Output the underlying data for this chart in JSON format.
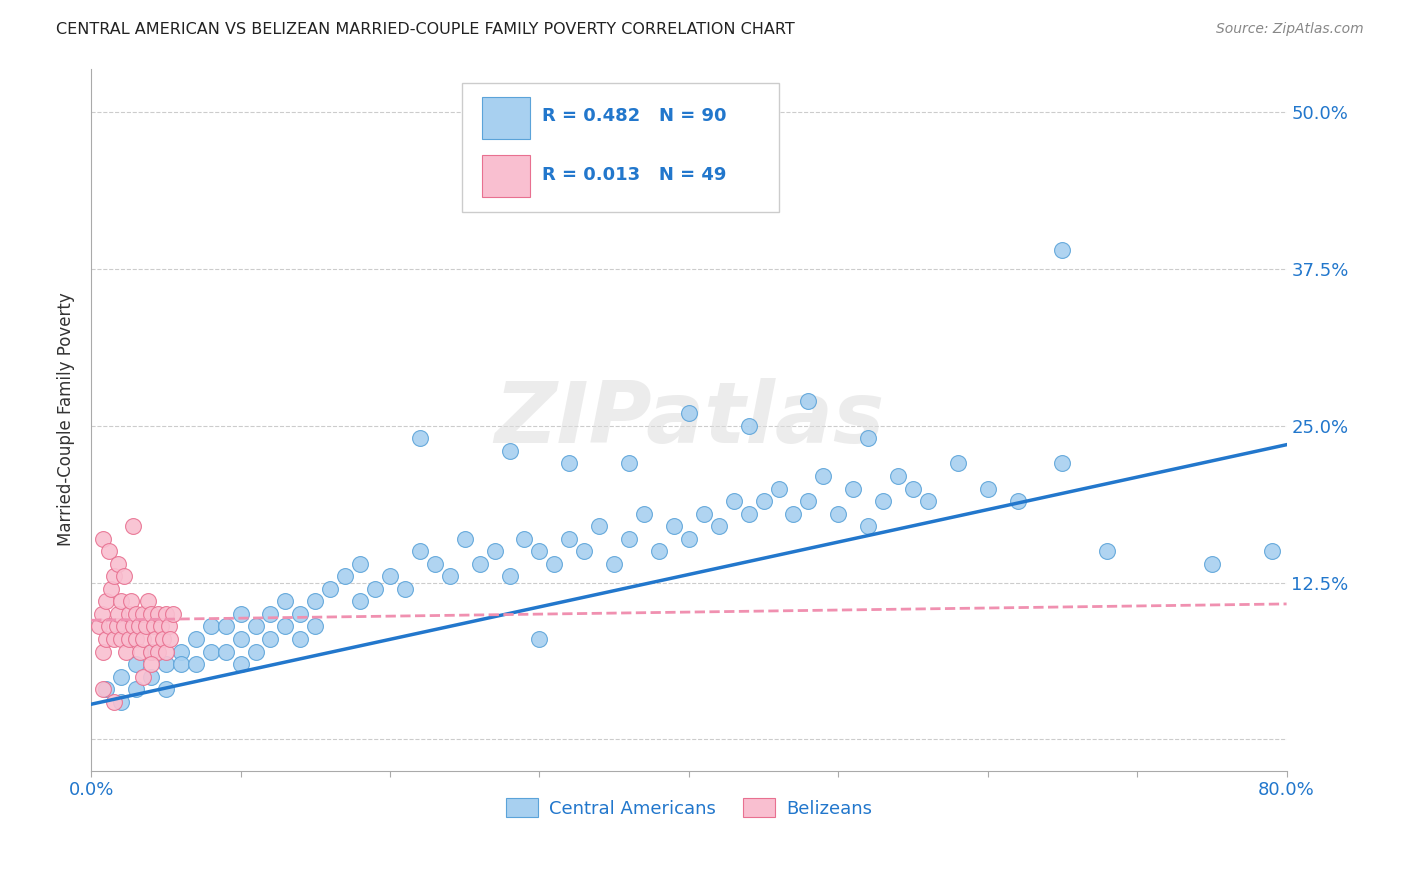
{
  "title": "CENTRAL AMERICAN VS BELIZEAN MARRIED-COUPLE FAMILY POVERTY CORRELATION CHART",
  "source": "Source: ZipAtlas.com",
  "ylabel": "Married-Couple Family Poverty",
  "xlim": [
    0,
    0.8
  ],
  "ylim": [
    -0.025,
    0.535
  ],
  "yticks": [
    0.0,
    0.125,
    0.25,
    0.375,
    0.5
  ],
  "ytick_labels": [
    "",
    "12.5%",
    "25.0%",
    "37.5%",
    "50.0%"
  ],
  "blue_R": 0.482,
  "blue_N": 90,
  "pink_R": 0.013,
  "pink_N": 49,
  "blue_color": "#A8D0F0",
  "blue_edge": "#5BA3D9",
  "pink_color": "#F9BFD0",
  "pink_edge": "#E87090",
  "trend_blue": "#2277CC",
  "trend_pink": "#F090B0",
  "watermark": "ZIPatlas",
  "legend_blue_label": "Central Americans",
  "legend_pink_label": "Belizeans",
  "background_color": "#FFFFFF",
  "grid_color": "#CCCCCC",
  "blue_x": [
    0.01,
    0.02,
    0.02,
    0.03,
    0.03,
    0.04,
    0.04,
    0.05,
    0.05,
    0.06,
    0.06,
    0.07,
    0.07,
    0.08,
    0.08,
    0.09,
    0.09,
    0.1,
    0.1,
    0.1,
    0.11,
    0.11,
    0.12,
    0.12,
    0.13,
    0.13,
    0.14,
    0.14,
    0.15,
    0.15,
    0.16,
    0.17,
    0.18,
    0.18,
    0.19,
    0.2,
    0.21,
    0.22,
    0.23,
    0.24,
    0.25,
    0.26,
    0.27,
    0.28,
    0.29,
    0.3,
    0.3,
    0.31,
    0.32,
    0.33,
    0.34,
    0.35,
    0.36,
    0.37,
    0.38,
    0.39,
    0.4,
    0.41,
    0.42,
    0.43,
    0.44,
    0.45,
    0.46,
    0.47,
    0.48,
    0.49,
    0.5,
    0.51,
    0.52,
    0.53,
    0.54,
    0.55,
    0.56,
    0.58,
    0.6,
    0.62,
    0.65,
    0.68,
    0.75,
    0.79,
    0.22,
    0.28,
    0.32,
    0.36,
    0.4,
    0.44,
    0.48,
    0.52,
    0.38,
    0.65
  ],
  "blue_y": [
    0.04,
    0.05,
    0.03,
    0.06,
    0.04,
    0.07,
    0.05,
    0.06,
    0.04,
    0.07,
    0.06,
    0.08,
    0.06,
    0.07,
    0.09,
    0.07,
    0.09,
    0.08,
    0.1,
    0.06,
    0.09,
    0.07,
    0.08,
    0.1,
    0.09,
    0.11,
    0.1,
    0.08,
    0.11,
    0.09,
    0.12,
    0.13,
    0.11,
    0.14,
    0.12,
    0.13,
    0.12,
    0.15,
    0.14,
    0.13,
    0.16,
    0.14,
    0.15,
    0.13,
    0.16,
    0.15,
    0.08,
    0.14,
    0.16,
    0.15,
    0.17,
    0.14,
    0.16,
    0.18,
    0.15,
    0.17,
    0.16,
    0.18,
    0.17,
    0.19,
    0.18,
    0.19,
    0.2,
    0.18,
    0.19,
    0.21,
    0.18,
    0.2,
    0.17,
    0.19,
    0.21,
    0.2,
    0.19,
    0.22,
    0.2,
    0.19,
    0.22,
    0.15,
    0.14,
    0.15,
    0.24,
    0.23,
    0.22,
    0.22,
    0.26,
    0.25,
    0.27,
    0.24,
    0.43,
    0.39
  ],
  "pink_x": [
    0.005,
    0.007,
    0.008,
    0.01,
    0.01,
    0.012,
    0.013,
    0.015,
    0.015,
    0.017,
    0.018,
    0.02,
    0.02,
    0.022,
    0.023,
    0.025,
    0.025,
    0.027,
    0.028,
    0.03,
    0.03,
    0.032,
    0.033,
    0.035,
    0.035,
    0.037,
    0.038,
    0.04,
    0.04,
    0.042,
    0.043,
    0.045,
    0.045,
    0.047,
    0.048,
    0.05,
    0.05,
    0.052,
    0.053,
    0.055,
    0.008,
    0.012,
    0.018,
    0.022,
    0.028,
    0.035,
    0.04,
    0.008,
    0.015
  ],
  "pink_y": [
    0.09,
    0.1,
    0.07,
    0.11,
    0.08,
    0.09,
    0.12,
    0.08,
    0.13,
    0.09,
    0.1,
    0.08,
    0.11,
    0.09,
    0.07,
    0.1,
    0.08,
    0.11,
    0.09,
    0.08,
    0.1,
    0.09,
    0.07,
    0.1,
    0.08,
    0.09,
    0.11,
    0.07,
    0.1,
    0.09,
    0.08,
    0.1,
    0.07,
    0.09,
    0.08,
    0.1,
    0.07,
    0.09,
    0.08,
    0.1,
    0.16,
    0.15,
    0.14,
    0.13,
    0.17,
    0.05,
    0.06,
    0.04,
    0.03
  ],
  "blue_trend_x": [
    0.0,
    0.8
  ],
  "blue_trend_y": [
    0.028,
    0.235
  ],
  "pink_trend_x": [
    0.0,
    0.8
  ],
  "pink_trend_y": [
    0.095,
    0.108
  ]
}
